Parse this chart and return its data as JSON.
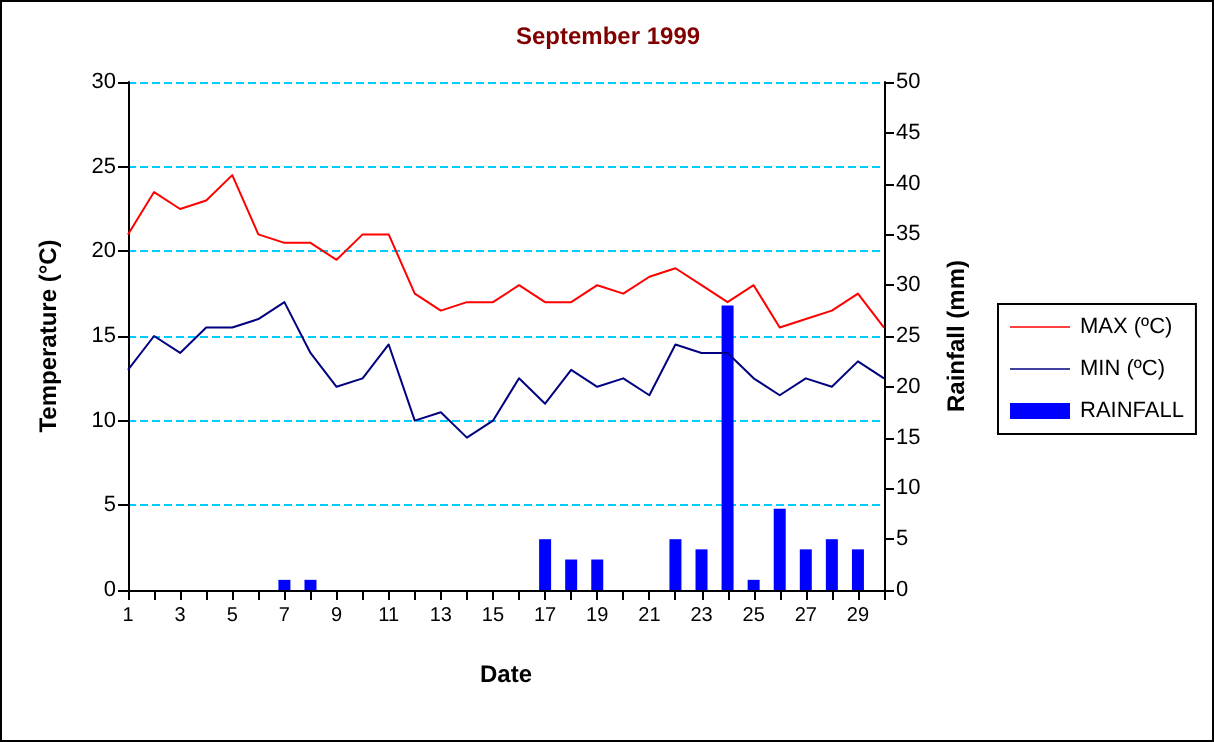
{
  "chart_data": {
    "type": "line",
    "title": "September 1999",
    "xlabel": "Date",
    "ylabel": "Temperature (°C)",
    "y2label": "Rainfall (mm)",
    "x": [
      1,
      2,
      3,
      4,
      5,
      6,
      7,
      8,
      9,
      10,
      11,
      12,
      13,
      14,
      15,
      16,
      17,
      18,
      19,
      20,
      21,
      22,
      23,
      24,
      25,
      26,
      27,
      28,
      29,
      30
    ],
    "xlim": [
      1,
      30
    ],
    "xticks": [
      1,
      {
        "value": 2,
        "label": null
      },
      3,
      {
        "value": 4,
        "label": null
      },
      5,
      {
        "value": 6,
        "label": null
      },
      7,
      {
        "value": 8,
        "label": null
      },
      9,
      {
        "value": 10,
        "label": null
      },
      11,
      {
        "value": 12,
        "label": null
      },
      13,
      {
        "value": 14,
        "label": null
      },
      15,
      {
        "value": 16,
        "label": null
      },
      17,
      {
        "value": 18,
        "label": null
      },
      19,
      {
        "value": 20,
        "label": null
      },
      21,
      {
        "value": 22,
        "label": null
      },
      23,
      {
        "value": 24,
        "label": null
      },
      25,
      {
        "value": 26,
        "label": null
      },
      27,
      {
        "value": 28,
        "label": null
      },
      29,
      {
        "value": 30,
        "label": null
      }
    ],
    "series": [
      {
        "name": "MAX (ºC)",
        "color": "#ff0000",
        "values": [
          21,
          23.5,
          22.5,
          23,
          24.5,
          21,
          20.5,
          20.5,
          19.5,
          21,
          21,
          17.5,
          16.5,
          17,
          17,
          18,
          17,
          17,
          18,
          17.5,
          18.5,
          19,
          18,
          17,
          18,
          15.5,
          16,
          16.5,
          17.5,
          15.5
        ]
      },
      {
        "name": "MIN (ºC)",
        "color": "#000080",
        "values": [
          13,
          15,
          14,
          15.5,
          15.5,
          16,
          17,
          14,
          12,
          12.5,
          14.5,
          10,
          10.5,
          9,
          10,
          12.5,
          11,
          13,
          12,
          12.5,
          11.5,
          14.5,
          14,
          14,
          12.5,
          11.5,
          12.5,
          12,
          13.5,
          12.5
        ]
      },
      {
        "name": "RAINFALL",
        "type": "bar",
        "axis": "y2",
        "color": "#0000ff",
        "values": [
          0,
          0,
          0,
          0,
          0,
          0,
          1,
          1,
          0,
          0,
          0,
          0,
          0,
          0,
          0,
          0,
          5,
          3,
          3,
          0,
          0,
          5,
          4,
          28,
          1,
          8,
          4,
          5,
          4,
          0
        ]
      }
    ],
    "ylim": [
      0,
      30
    ],
    "yticks": [
      0,
      5,
      10,
      15,
      20,
      25,
      30
    ],
    "y2lim": [
      0,
      50
    ],
    "y2ticks": [
      0,
      5,
      10,
      15,
      20,
      25,
      30,
      35,
      40,
      45,
      50
    ],
    "grid": "y",
    "legend": "right",
    "marker": "none"
  }
}
